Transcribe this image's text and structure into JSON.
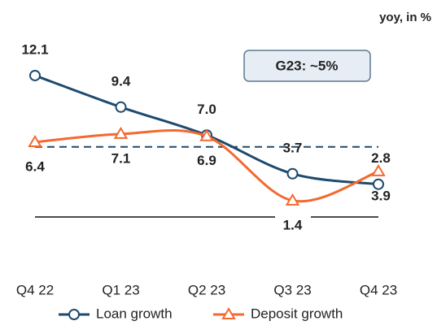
{
  "chart_data": {
    "type": "line",
    "unit_label": "yoy, in %",
    "annotation": "G23: ~5%",
    "categories": [
      "Q4 22",
      "Q1 23",
      "Q2 23",
      "Q3 23",
      "Q4 23"
    ],
    "series": [
      {
        "name": "Loan growth",
        "color": "#1e4a6d",
        "marker": "circle",
        "values": [
          12.1,
          9.4,
          7.0,
          3.7,
          2.8
        ],
        "value_labels": [
          "12.1",
          "9.4",
          "7.0",
          "3.7",
          "2.8"
        ]
      },
      {
        "name": "Deposit growth",
        "color": "#f26a30",
        "marker": "triangle",
        "values": [
          6.4,
          7.1,
          6.9,
          1.4,
          3.9
        ]
      }
    ],
    "reference_line": 6.0,
    "ylim": [
      0,
      13
    ]
  }
}
